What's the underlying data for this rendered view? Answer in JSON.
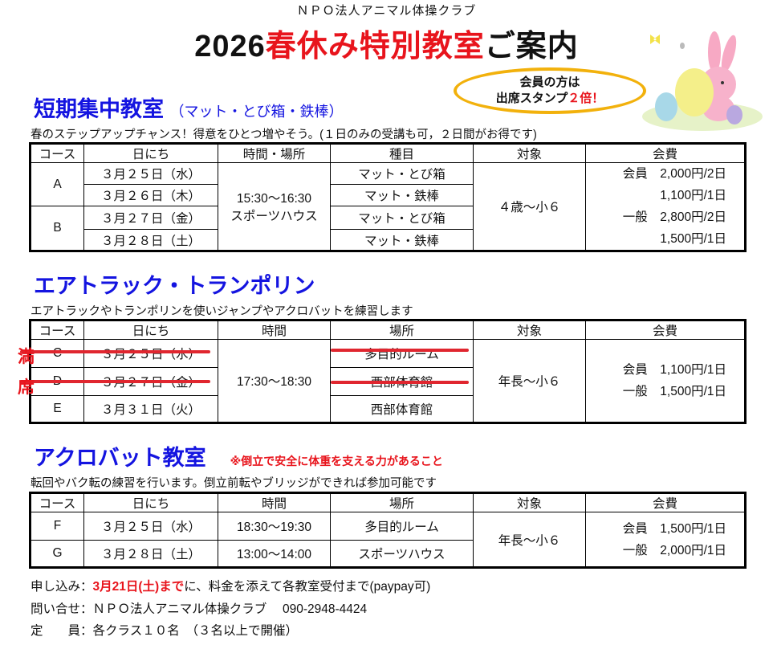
{
  "header": {
    "org": "ＮＰＯ法人アニマル体操クラブ",
    "title_year": "2026",
    "title_red": "春休み特別教室",
    "title_tail": "ご案内"
  },
  "bubble": {
    "line1": "会員の方は",
    "line2a": "出席スタンプ",
    "line2b": "２倍！"
  },
  "colors": {
    "accent_red": "#e8141c",
    "heading_blue": "#1414e0",
    "bubble_border": "#f2b10c"
  },
  "sections": [
    {
      "title": "短期集中教室",
      "subtitle": "（マット・とび箱・鉄棒）",
      "desc": "春のステップアップチャンス！得意をひとつ増やそう。(１日のみの受講も可，２日間がお得です)",
      "headers": [
        "コース",
        "日にち",
        "時間・場所",
        "種目",
        "対象",
        "会費"
      ],
      "courses": [
        "A",
        "B"
      ],
      "dates": [
        "３月２５日（水）",
        "３月２６日（木）",
        "３月２７日（金）",
        "３月２８日（土）"
      ],
      "time": "15:30～16:30",
      "place": "スポーツハウス",
      "events": [
        "マット・とび箱",
        "マット・鉄棒",
        "マット・とび箱",
        "マット・鉄棒"
      ],
      "target": "４歳～小６",
      "fees": [
        "会員　2,000円/2日",
        "1,100円/1日",
        "一般　2,800円/2日",
        "1,500円/1日"
      ]
    },
    {
      "title": "エアトラック・トランポリン",
      "desc": "エアトラックやトランポリンを使いジャンプやアクロバットを練習します",
      "headers": [
        "コース",
        "日にち",
        "時間",
        "場所",
        "対象",
        "会費"
      ],
      "courses": [
        "C",
        "D",
        "E"
      ],
      "dates": [
        "３月２５日（水）",
        "３月２７日（金）",
        "３月３１日（火）"
      ],
      "time": "17:30～18:30",
      "places": [
        "多目的ルーム",
        "西部体育館",
        "西部体育館"
      ],
      "target": "年長～小６",
      "fees": [
        "会員　1,100円/1日",
        "一般　1,500円/1日"
      ],
      "full_label": [
        "満",
        "席"
      ]
    },
    {
      "title": "アクロバット教室",
      "warning": "※倒立で安全に体重を支える力があること",
      "desc": "転回やバク転の練習を行います。倒立前転やブリッジができれば参加可能です",
      "headers": [
        "コース",
        "日にち",
        "時間",
        "場所",
        "対象",
        "会費"
      ],
      "courses": [
        "F",
        "G"
      ],
      "dates": [
        "３月２５日（水）",
        "３月２８日（土）"
      ],
      "times": [
        "18:30～19:30",
        "13:00～14:00"
      ],
      "places": [
        "多目的ルーム",
        "スポーツハウス"
      ],
      "target": "年長～小６",
      "fees": [
        "会員　1,500円/1日",
        "一般　2,000円/1日"
      ]
    }
  ],
  "footer": {
    "apply_label": "申し込み：",
    "apply_deadline": "3月21日(土)まで",
    "apply_rest": "に、料金を添えて各教室受付まで(paypay可)",
    "contact": "問い合せ：ＮＰＯ法人アニマル体操クラブ　 090-2948-4424",
    "capacity": "定　　員：各クラス１０名　（３名以上で開催）"
  }
}
